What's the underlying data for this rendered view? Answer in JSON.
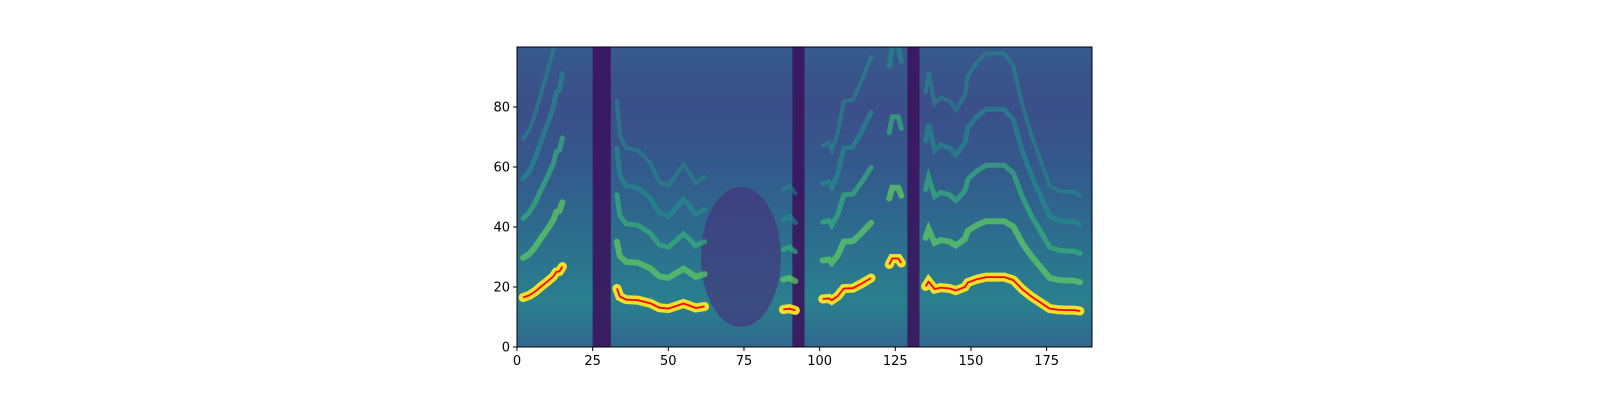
{
  "chart_data": {
    "type": "heatmap",
    "title": "",
    "xlabel": "",
    "ylabel": "",
    "xlim": [
      0,
      190
    ],
    "ylim": [
      0,
      100
    ],
    "colormap": "viridis",
    "grid": false,
    "x_ticks": [
      0,
      25,
      50,
      75,
      100,
      125,
      150,
      175
    ],
    "y_ticks": [
      0,
      20,
      40,
      60,
      80
    ],
    "x_tick_labels": [
      "0",
      "25",
      "50",
      "75",
      "100",
      "125",
      "150",
      "175"
    ],
    "y_tick_labels": [
      "0",
      "20",
      "40",
      "60",
      "80"
    ],
    "dark_bands_x": [
      [
        25,
        31
      ],
      [
        91,
        95
      ],
      [
        129,
        133
      ]
    ],
    "series": [
      {
        "color": "#ff0000",
        "segments": [
          [
            [
              2,
              16.5
            ],
            [
              4,
              17.2
            ],
            [
              6,
              18.5
            ],
            [
              8,
              20.2
            ],
            [
              10,
              21.8
            ],
            [
              12,
              23.5
            ],
            [
              13,
              25
            ],
            [
              14,
              25.2
            ],
            [
              15,
              26.8
            ]
          ],
          [
            [
              33,
              19.5
            ],
            [
              34,
              16.8
            ],
            [
              36,
              15.8
            ],
            [
              40,
              15.6
            ],
            [
              44,
              14.6
            ],
            [
              47,
              13.1
            ],
            [
              50,
              12.8
            ],
            [
              53,
              13.8
            ],
            [
              55,
              14.5
            ],
            [
              57,
              13.8
            ],
            [
              59,
              13
            ],
            [
              62,
              13.5
            ]
          ],
          [
            [
              88,
              12.5
            ],
            [
              90,
              12.8
            ],
            [
              92,
              12.2
            ]
          ],
          [
            [
              101,
              16
            ],
            [
              103,
              16.2
            ],
            [
              104,
              15.6
            ],
            [
              106,
              17
            ],
            [
              108,
              19.5
            ],
            [
              111,
              19.6
            ],
            [
              114,
              21.2
            ],
            [
              117,
              23
            ]
          ],
          [
            [
              123,
              27.5
            ],
            [
              124,
              29.5
            ],
            [
              126,
              29.5
            ],
            [
              127,
              28
            ]
          ],
          [
            [
              135,
              20.2
            ],
            [
              136,
              21.8
            ],
            [
              138,
              19.3
            ],
            [
              140,
              19.8
            ],
            [
              143,
              19.5
            ],
            [
              145,
              18.8
            ],
            [
              148,
              20
            ],
            [
              149,
              21.5
            ],
            [
              152,
              22.6
            ],
            [
              155,
              23.3
            ],
            [
              158,
              23.3
            ],
            [
              161,
              23.3
            ],
            [
              164,
              22.3
            ],
            [
              167,
              19.2
            ],
            [
              170,
              16.8
            ],
            [
              173,
              14.8
            ],
            [
              176,
              12.8
            ],
            [
              179,
              12.4
            ],
            [
              182,
              12.3
            ],
            [
              184,
              12.3
            ],
            [
              186,
              12
            ]
          ]
        ]
      }
    ]
  }
}
